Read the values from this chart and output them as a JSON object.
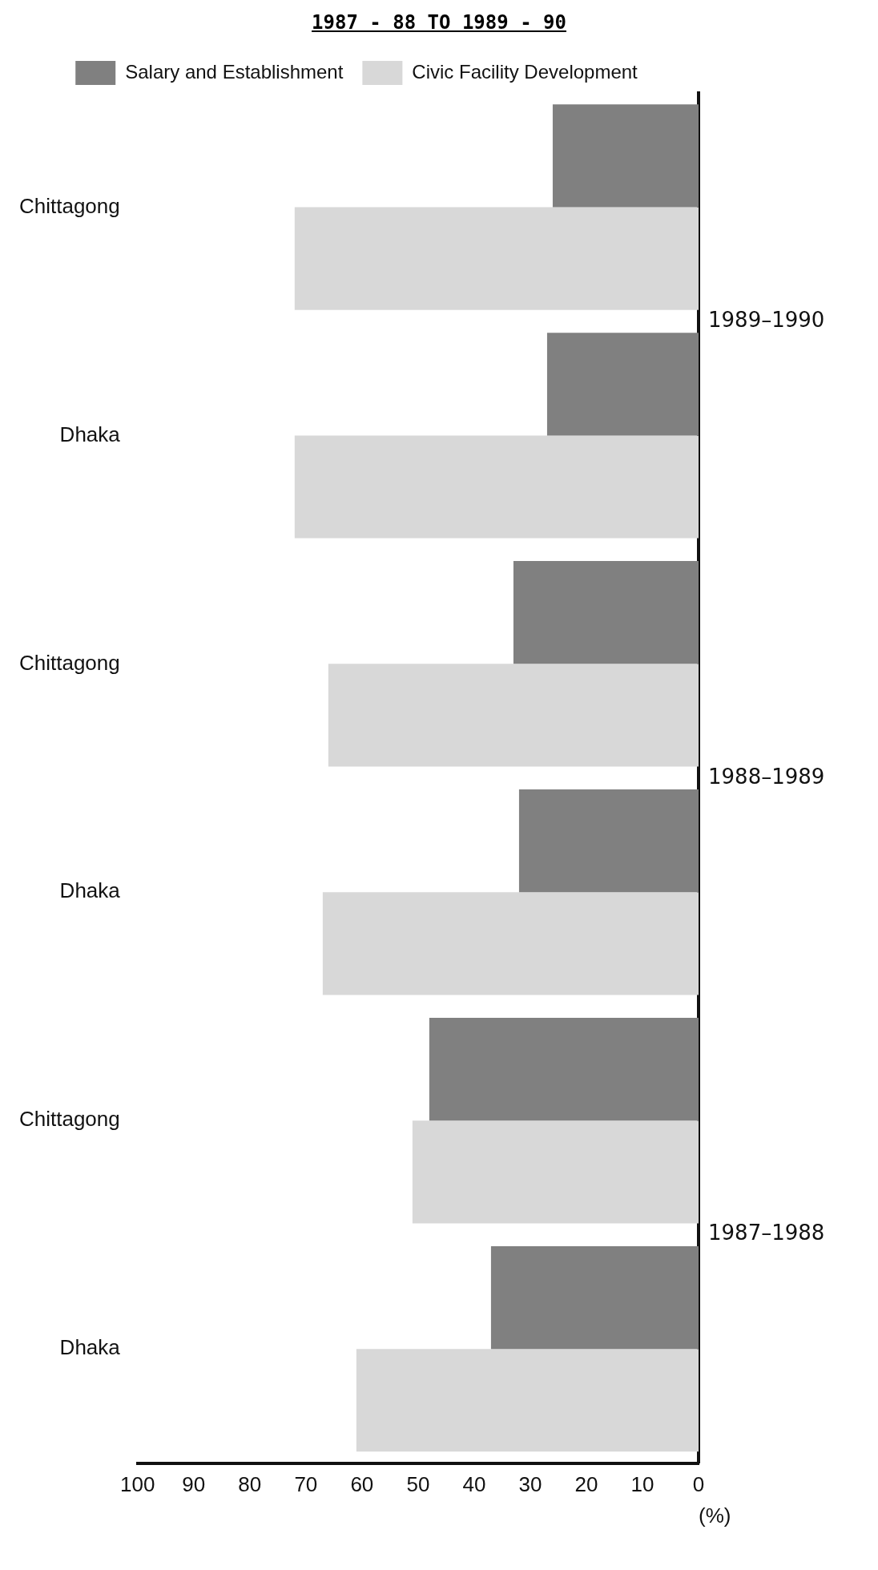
{
  "chart_data": {
    "type": "bar",
    "orientation": "horizontal",
    "title": "1987 - 88 TO 1989 - 90",
    "xlabel": "(%)",
    "categories": [
      "Chittagong",
      "Dhaka",
      "Chittagong",
      "Dhaka",
      "Chittagong",
      "Dhaka"
    ],
    "series": [
      {
        "name": "Salary and Establishment",
        "color": "#808080",
        "values": [
          26,
          27,
          33,
          32,
          48,
          37
        ]
      },
      {
        "name": "Civic Facility Development",
        "color": "#d8d8d8",
        "values": [
          72,
          72,
          66,
          67,
          51,
          61
        ]
      }
    ],
    "annotations": [
      "1989–1990",
      "1988–1989",
      "1987–1988"
    ],
    "xlim": [
      100,
      0
    ],
    "xticks": [
      0,
      10,
      20,
      30,
      40,
      50,
      60,
      70,
      80,
      90,
      100
    ],
    "grid": false,
    "legend": "top"
  }
}
